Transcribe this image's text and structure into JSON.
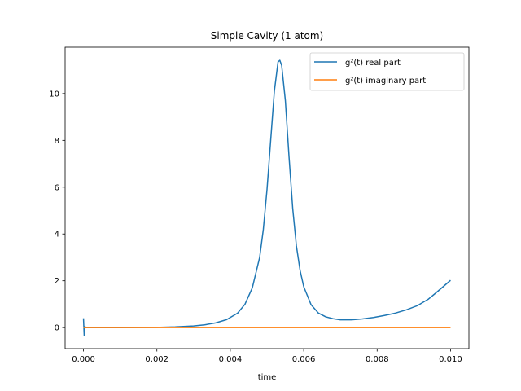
{
  "chart_data": {
    "type": "line",
    "title": "Simple Cavity (1 atom)",
    "xlabel": "time",
    "ylabel": "",
    "xlim": [
      -0.0005,
      0.0105
    ],
    "ylim": [
      -0.9,
      11.98
    ],
    "x_ticks": [
      0.0,
      0.002,
      0.004,
      0.006,
      0.008,
      0.01
    ],
    "x_tick_labels": [
      "0.000",
      "0.002",
      "0.004",
      "0.006",
      "0.008",
      "0.010"
    ],
    "y_ticks": [
      0,
      2,
      4,
      6,
      8,
      10
    ],
    "y_tick_labels": [
      "0",
      "2",
      "4",
      "6",
      "8",
      "10"
    ],
    "grid": false,
    "legend_position": "top-right",
    "series": [
      {
        "name": "g²(t) real part",
        "color": "#1f77b4",
        "x": [
          0.0,
          2e-05,
          4e-05,
          6e-05,
          0.0001,
          0.0005,
          0.001,
          0.0015,
          0.002,
          0.0025,
          0.003,
          0.0033,
          0.0036,
          0.0039,
          0.0042,
          0.0044,
          0.0046,
          0.0048,
          0.0049,
          0.005,
          0.0051,
          0.0052,
          0.0053,
          0.00535,
          0.0054,
          0.0055,
          0.0056,
          0.0057,
          0.0058,
          0.0059,
          0.006,
          0.0062,
          0.0064,
          0.0066,
          0.0068,
          0.007,
          0.0073,
          0.0076,
          0.0079,
          0.0082,
          0.0085,
          0.0088,
          0.0091,
          0.0094,
          0.0096,
          0.0098,
          0.01
        ],
        "values": [
          0.4,
          -0.35,
          0.05,
          0.0,
          0.0,
          0.0,
          0.0,
          0.005,
          0.01,
          0.03,
          0.07,
          0.12,
          0.2,
          0.34,
          0.62,
          1.0,
          1.7,
          3.0,
          4.2,
          5.9,
          8.0,
          10.1,
          11.35,
          11.42,
          11.2,
          9.7,
          7.3,
          5.1,
          3.5,
          2.45,
          1.75,
          0.98,
          0.62,
          0.46,
          0.38,
          0.33,
          0.33,
          0.37,
          0.43,
          0.52,
          0.62,
          0.76,
          0.94,
          1.22,
          1.48,
          1.75,
          2.02
        ]
      },
      {
        "name": "g²(t) imaginary part",
        "color": "#ff7f0e",
        "x": [
          0.0,
          0.01
        ],
        "values": [
          0.0,
          0.0
        ]
      }
    ]
  }
}
